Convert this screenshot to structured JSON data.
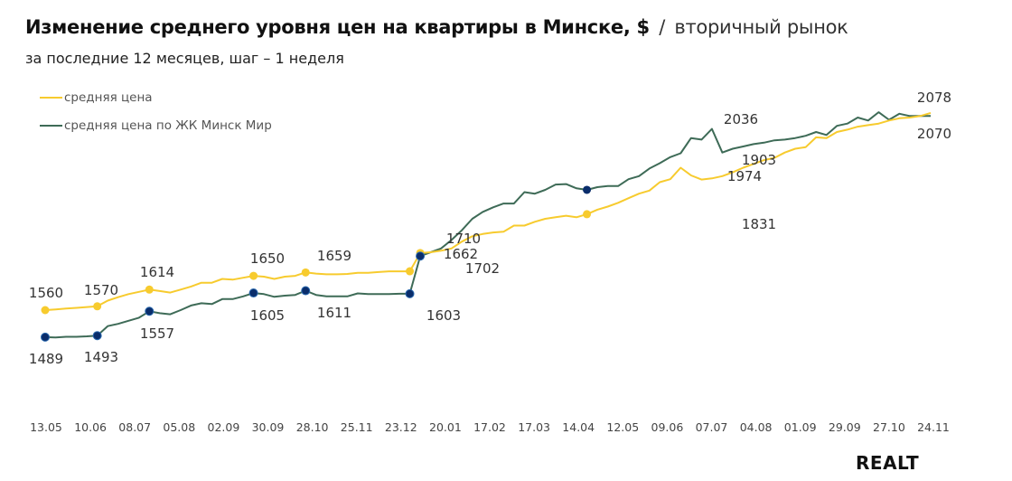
{
  "header": {
    "title_bold": "Изменение среднего уровня цен на квартиры в Минске, $",
    "title_sep": "/",
    "title_suffix": "вторичный рынок",
    "subtitle": "за последние 12 месяцев, шаг – 1 неделя"
  },
  "logo": "REALT",
  "colors": {
    "yellow": "#F7CB2E",
    "green": "#3E6B57",
    "marker_green": "#0A2D6B"
  },
  "chart_data": {
    "type": "line",
    "title": "Изменение среднего уровня цен на квартиры в Минске, $ / вторичный рынок",
    "subtitle": "за последние 12 месяцев, шаг – 1 неделя",
    "xlabel": "",
    "ylabel": "",
    "ylim": [
      1400,
      2120
    ],
    "grid": false,
    "legend_position": "top-left",
    "x_ticks": [
      "13.05",
      "10.06",
      "08.07",
      "05.08",
      "02.09",
      "30.09",
      "28.10",
      "25.11",
      "23.12",
      "20.01",
      "17.02",
      "17.03",
      "14.04",
      "12.05",
      "09.06",
      "07.07",
      "04.08",
      "01.09",
      "29.09",
      "27.10",
      "24.11"
    ],
    "series": [
      {
        "name": "средняя цена",
        "color": "#F7CB2E",
        "values": [
          1560,
          1562,
          1564,
          1566,
          1568,
          1570,
          1585,
          1594,
          1602,
          1608,
          1614,
          1610,
          1606,
          1614,
          1622,
          1632,
          1632,
          1642,
          1640,
          1645,
          1650,
          1648,
          1642,
          1648,
          1650,
          1659,
          1656,
          1654,
          1654,
          1655,
          1658,
          1658,
          1660,
          1662,
          1662,
          1662,
          1710,
          1712,
          1716,
          1722,
          1740,
          1754,
          1760,
          1764,
          1766,
          1782,
          1782,
          1792,
          1800,
          1804,
          1808,
          1804,
          1812,
          1824,
          1832,
          1842,
          1854,
          1866,
          1874,
          1896,
          1904,
          1934,
          1914,
          1903,
          1906,
          1912,
          1922,
          1934,
          1944,
          1954,
          1960,
          1974,
          1984,
          1988,
          2014,
          2012,
          2028,
          2034,
          2042,
          2046,
          2050,
          2058,
          2064,
          2066,
          2070,
          2078
        ],
        "point_labels": [
          {
            "index": 0,
            "label": "1560"
          },
          {
            "index": 5,
            "label": "1570"
          },
          {
            "index": 10,
            "label": "1614"
          },
          {
            "index": 20,
            "label": "1650"
          },
          {
            "index": 25,
            "label": "1659"
          },
          {
            "index": 35,
            "label": "1662"
          },
          {
            "index": 36,
            "label": "1710"
          },
          {
            "index": 63,
            "label": "1903"
          },
          {
            "index": 85,
            "label": "2078"
          }
        ],
        "extra_labels": [
          "1831"
        ]
      },
      {
        "name": "средняя цена по ЖК Минск Мир",
        "color": "#3E6B57",
        "values": [
          1489,
          1488,
          1490,
          1490,
          1491,
          1493,
          1518,
          1524,
          1532,
          1540,
          1557,
          1552,
          1549,
          1560,
          1572,
          1578,
          1576,
          1589,
          1589,
          1596,
          1605,
          1602,
          1595,
          1598,
          1600,
          1611,
          1600,
          1596,
          1596,
          1596,
          1604,
          1602,
          1602,
          1602,
          1603,
          1603,
          1702,
          1712,
          1722,
          1744,
          1770,
          1800,
          1818,
          1830,
          1840,
          1840,
          1870,
          1866,
          1876,
          1890,
          1891,
          1880,
          1876,
          1883,
          1886,
          1886,
          1904,
          1912,
          1932,
          1946,
          1962,
          1972,
          2012,
          2008,
          2036,
          1974,
          1984,
          1990,
          1996,
          2000,
          2006,
          2008,
          2012,
          2018,
          2028,
          2020,
          2044,
          2050,
          2066,
          2058,
          2080,
          2060,
          2076,
          2070,
          2070,
          2070
        ],
        "point_labels": [
          {
            "index": 0,
            "label": "1489"
          },
          {
            "index": 5,
            "label": "1493"
          },
          {
            "index": 10,
            "label": "1557"
          },
          {
            "index": 20,
            "label": "1605"
          },
          {
            "index": 25,
            "label": "1611"
          },
          {
            "index": 35,
            "label": "1603"
          },
          {
            "index": 36,
            "label": "1702"
          },
          {
            "index": 64,
            "label": "2036"
          },
          {
            "index": 65,
            "label": "1974"
          },
          {
            "index": 85,
            "label": "2070"
          }
        ]
      }
    ]
  }
}
